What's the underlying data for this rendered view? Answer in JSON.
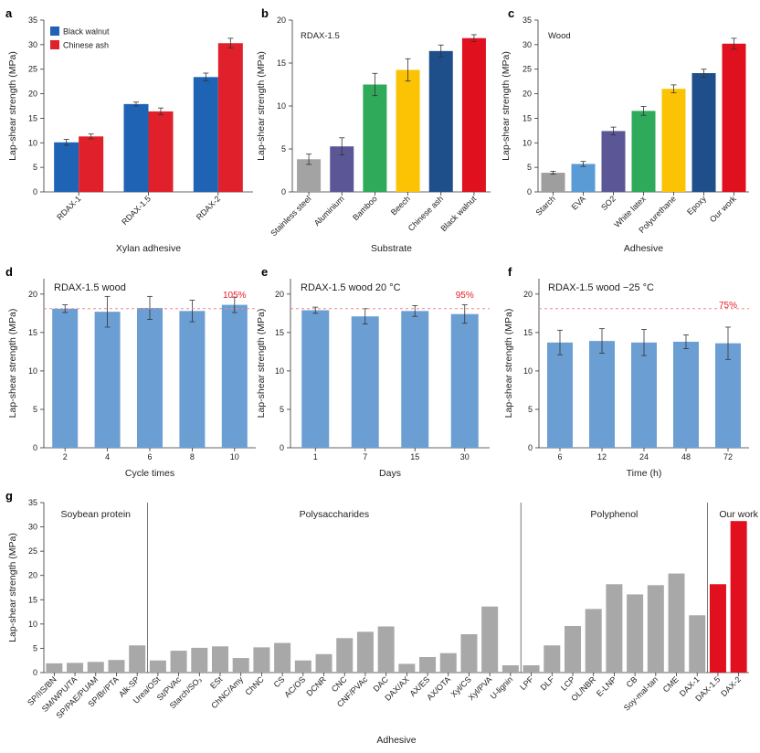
{
  "chart_data": [
    {
      "panel": "a",
      "type": "bar",
      "title": "",
      "xlabel": "Xylan adhesive",
      "ylabel": "Lap-shear strength (MPa)",
      "ylim": [
        0,
        35
      ],
      "yticks": [
        0,
        5,
        10,
        15,
        20,
        25,
        30,
        35
      ],
      "categories": [
        "RDAX-1",
        "RDAX-1.5",
        "RDAX-2"
      ],
      "legend_position": "top-left",
      "series": [
        {
          "name": "Black walnut",
          "color": "#1f63b5",
          "values": [
            10.1,
            17.9,
            23.4
          ],
          "errors": [
            0.6,
            0.4,
            0.8
          ]
        },
        {
          "name": "Chinese ash",
          "color": "#e0202b",
          "values": [
            11.3,
            16.4,
            30.3
          ],
          "errors": [
            0.5,
            0.7,
            1.0
          ]
        }
      ]
    },
    {
      "panel": "b",
      "type": "bar",
      "inner_title": "RDAX-1.5",
      "xlabel": "Substrate",
      "ylabel": "Lap-shear strength (MPa)",
      "ylim": [
        0,
        20
      ],
      "yticks": [
        0,
        5,
        10,
        15,
        20
      ],
      "categories": [
        "Stainless steel",
        "Aluminium",
        "Bamboo",
        "Beech",
        "Chinese ash",
        "Black walnut"
      ],
      "values": [
        3.8,
        5.3,
        12.5,
        14.2,
        16.4,
        17.9
      ],
      "errors": [
        0.6,
        1.0,
        1.3,
        1.3,
        0.7,
        0.4
      ],
      "colors": [
        "#a3a3a3",
        "#5b5797",
        "#2eaa5a",
        "#fbc304",
        "#1f4f8a",
        "#e0101e"
      ]
    },
    {
      "panel": "c",
      "type": "bar",
      "inner_title": "Wood",
      "xlabel": "Adhesive",
      "ylabel": "Lap-shear strength (MPa)",
      "ylim": [
        0,
        35
      ],
      "yticks": [
        0,
        5,
        10,
        15,
        20,
        25,
        30,
        35
      ],
      "categories": [
        "Starch",
        "EVA",
        "SO2",
        "White latex",
        "Polyurethane",
        "Epoxy",
        "Our work"
      ],
      "values": [
        3.9,
        5.7,
        12.4,
        16.5,
        21.0,
        24.2,
        30.2
      ],
      "errors": [
        0.3,
        0.5,
        0.8,
        0.9,
        0.8,
        0.8,
        1.1
      ],
      "colors": [
        "#9e9e9e",
        "#5b9bd5",
        "#5b5797",
        "#2eaa5a",
        "#fbc304",
        "#1f4f8a",
        "#e0101e"
      ]
    },
    {
      "panel": "d",
      "type": "bar",
      "inner_title": "RDAX-1.5 wood",
      "xlabel": "Cycle times",
      "ylabel": "Lap-shear strength (MPa)",
      "ylim": [
        0,
        22
      ],
      "yticks": [
        0,
        5,
        10,
        15,
        20
      ],
      "categories": [
        "2",
        "4",
        "6",
        "8",
        "10"
      ],
      "values": [
        18.1,
        17.7,
        18.2,
        17.8,
        18.6
      ],
      "errors": [
        0.5,
        2.0,
        1.5,
        1.4,
        1.0
      ],
      "color": "#6b9fd4",
      "reference_line": 18.1,
      "annotation": "105%"
    },
    {
      "panel": "e",
      "type": "bar",
      "inner_title": "RDAX-1.5 wood 20 °C",
      "xlabel": "Days",
      "ylabel": "Lap-shear strength (MPa)",
      "ylim": [
        0,
        22
      ],
      "yticks": [
        0,
        5,
        10,
        15,
        20
      ],
      "categories": [
        "1",
        "7",
        "15",
        "30"
      ],
      "values": [
        17.9,
        17.1,
        17.8,
        17.4
      ],
      "errors": [
        0.4,
        1.0,
        0.7,
        1.2
      ],
      "color": "#6b9fd4",
      "reference_line": 18.1,
      "annotation": "95%"
    },
    {
      "panel": "f",
      "type": "bar",
      "inner_title": "RDAX-1.5 wood −25 °C",
      "xlabel": "Time (h)",
      "ylabel": "Lap-shear strength (MPa)",
      "ylim": [
        0,
        22
      ],
      "yticks": [
        0,
        5,
        10,
        15,
        20
      ],
      "categories": [
        "6",
        "12",
        "24",
        "48",
        "72"
      ],
      "values": [
        13.7,
        13.9,
        13.7,
        13.8,
        13.6
      ],
      "errors": [
        1.6,
        1.6,
        1.7,
        0.9,
        2.1
      ],
      "color": "#6b9fd4",
      "reference_line": 18.1,
      "annotation": "75%"
    },
    {
      "panel": "g",
      "type": "bar",
      "xlabel": "Adhesive",
      "ylabel": "Lap-shear strength (MPa)",
      "ylim": [
        0,
        35
      ],
      "yticks": [
        0,
        5,
        10,
        15,
        20,
        25,
        30,
        35
      ],
      "groups": [
        {
          "label": "Soybean protein",
          "start": 0,
          "end": 5
        },
        {
          "label": "Polysaccharides",
          "start": 5,
          "end": 23
        },
        {
          "label": "Polyphenol",
          "start": 23,
          "end": 32
        },
        {
          "label": "Our work",
          "start": 32,
          "end": 35
        }
      ],
      "categories": [
        "SP/IIS/BN",
        "SM/WPU/TA",
        "SP/PAE/PUAM",
        "SP/Br/PTA",
        "Alk-SP",
        "Urea/OSt",
        "St/PVAc",
        "Starch/SO₃",
        "ESt",
        "ChNC/Amy",
        "ChNC",
        "CS",
        "AC/OS",
        "DCNR",
        "CNC",
        "CNF/PVAc",
        "DAC",
        "DAX/AX",
        "AX/ES",
        "AX/OTA",
        "Xyl/CS",
        "Xyl/PVA",
        "U-lignin",
        "LPF",
        "DLF",
        "LCP",
        "OL/NBR",
        "E-LNP",
        "CB",
        "Soy-mal-tan",
        "CME",
        "DAX-1",
        "DAX-1.5",
        "DAX-2"
      ],
      "values": [
        1.9,
        2.0,
        2.2,
        2.6,
        5.6,
        2.5,
        4.5,
        5.1,
        5.4,
        3.0,
        5.2,
        6.1,
        2.5,
        3.8,
        7.1,
        8.4,
        9.5,
        1.8,
        3.2,
        4.0,
        7.9,
        13.6,
        1.5,
        1.5,
        5.6,
        9.6,
        13.1,
        18.2,
        16.1,
        18.0,
        20.4,
        11.8,
        18.2,
        31.2
      ],
      "colors": {
        "reference": "#a8a8a8",
        "ours": "#e0101e"
      }
    }
  ]
}
